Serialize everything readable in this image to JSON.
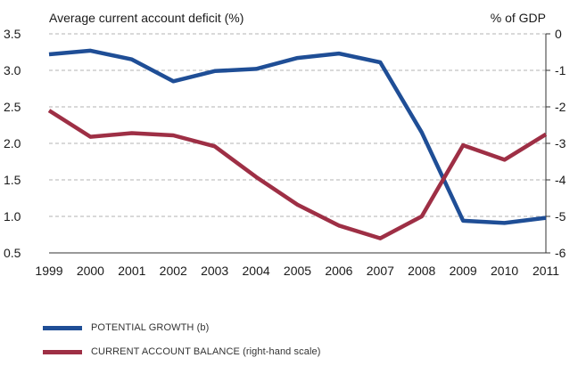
{
  "chart_data": {
    "type": "line",
    "title": "",
    "left_axis_title": "Average current account deficit (%)",
    "right_axis_title": "% of GDP",
    "categories": [
      "1999",
      "2000",
      "2001",
      "2002",
      "2003",
      "2004",
      "2005",
      "2006",
      "2007",
      "2008",
      "2009",
      "2010",
      "2011"
    ],
    "left_axis": {
      "ylim": [
        0.5,
        3.5
      ],
      "ticks": [
        "0.5",
        "1.0",
        "1.5",
        "2.0",
        "2.5",
        "3.0",
        "3.5"
      ]
    },
    "right_axis": {
      "ylim": [
        -6,
        0
      ],
      "ticks": [
        "-6",
        "-5",
        "-4",
        "-3",
        "-2",
        "-1",
        "0"
      ]
    },
    "grid": true,
    "legend_position": "bottom-left",
    "series": [
      {
        "name": "POTENTIAL GROWTH (b)",
        "axis": "left",
        "color": "#1f4e96",
        "values": [
          3.22,
          3.27,
          3.15,
          2.85,
          2.99,
          3.02,
          3.17,
          3.23,
          3.11,
          2.15,
          0.94,
          0.91,
          0.98
        ]
      },
      {
        "name": "CURRENT ACCOUNT BALANCE (right-hand scale)",
        "axis": "right",
        "color": "#9e2f45",
        "values": [
          -2.1,
          -2.82,
          -2.72,
          -2.78,
          -3.08,
          -3.92,
          -4.68,
          -5.25,
          -5.6,
          -5.0,
          -3.05,
          -3.45,
          -2.75
        ]
      }
    ]
  }
}
